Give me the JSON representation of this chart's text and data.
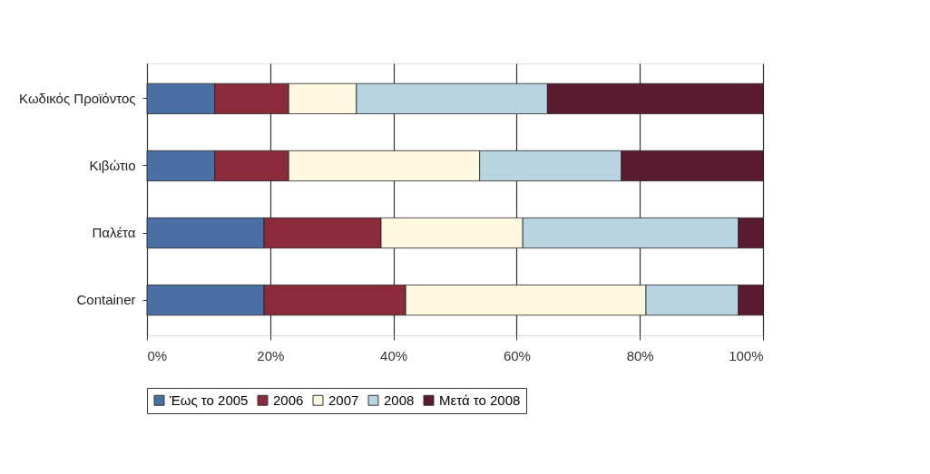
{
  "chart_data": {
    "type": "bar",
    "orientation": "horizontal",
    "stacked": true,
    "categories": [
      "Κωδικός Προϊόντος",
      "Κιβώτιο",
      "Παλέτα",
      "Container"
    ],
    "series": [
      {
        "name": "Έως το 2005",
        "color": "#4a6fa5",
        "values": [
          11,
          11,
          19,
          19
        ]
      },
      {
        "name": "2006",
        "color": "#8b2a3a",
        "values": [
          12,
          12,
          19,
          23
        ]
      },
      {
        "name": "2007",
        "color": "#fff8e0",
        "values": [
          11,
          31,
          23,
          39
        ]
      },
      {
        "name": "2008",
        "color": "#b8d4e0",
        "values": [
          31,
          23,
          35,
          15
        ]
      },
      {
        "name": "Μετά το 2008",
        "color": "#5a1a30",
        "values": [
          35,
          23,
          4,
          4
        ]
      }
    ],
    "xlim": [
      0,
      100
    ],
    "xticks": [
      {
        "value": 0,
        "label": "0%"
      },
      {
        "value": 20,
        "label": "20%"
      },
      {
        "value": 40,
        "label": "40%"
      },
      {
        "value": 60,
        "label": "60%"
      },
      {
        "value": 80,
        "label": "80%"
      },
      {
        "value": 100,
        "label": "100%"
      }
    ],
    "grid": "x",
    "legend": "bottom"
  }
}
